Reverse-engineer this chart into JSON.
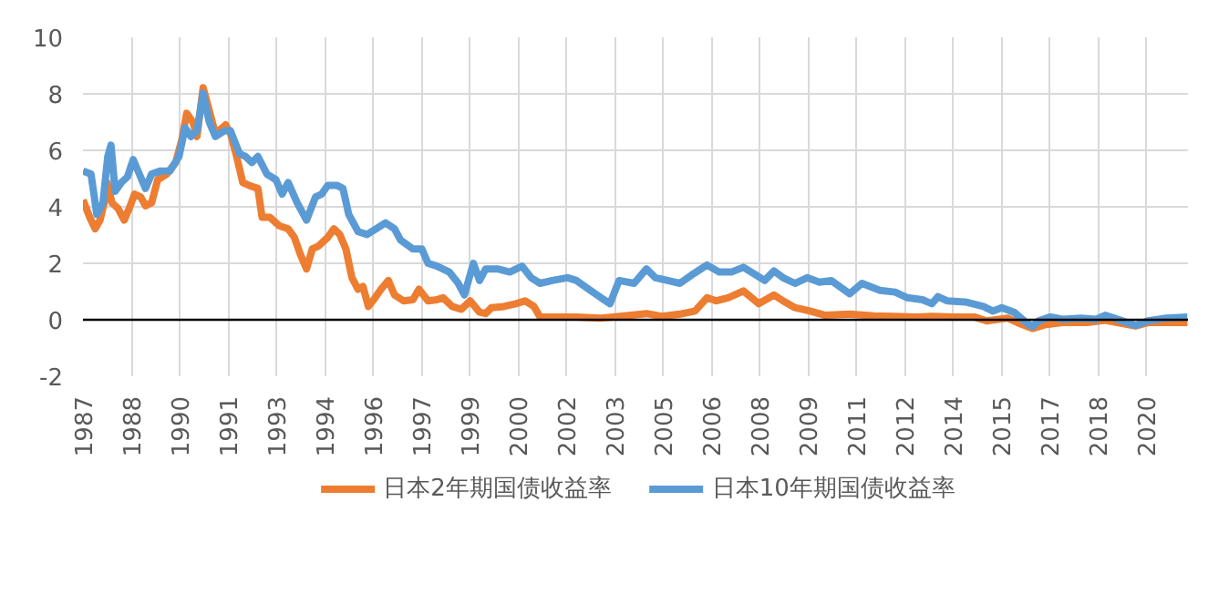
{
  "chart_data": {
    "type": "line",
    "series": [
      {
        "name": "日本2年期国债收益率",
        "color": "#ed7d31",
        "x": [
          1987.0,
          1987.21,
          1987.38,
          1987.53,
          1987.66,
          1987.75,
          1987.9,
          1988.09,
          1988.28,
          1988.47,
          1988.6,
          1988.79,
          1988.94,
          1989.13,
          1989.32,
          1989.6,
          1989.88,
          1990.07,
          1990.22,
          1990.41,
          1990.54,
          1990.73,
          1990.92,
          1991.11,
          1991.43,
          1991.58,
          1991.77,
          1991.96,
          1992.15,
          1992.43,
          1992.56,
          1992.8,
          1993.09,
          1993.37,
          1993.56,
          1993.75,
          1993.94,
          1994.12,
          1994.31,
          1994.6,
          1994.79,
          1994.97,
          1995.16,
          1995.35,
          1995.54,
          1995.69,
          1995.86,
          1996.07,
          1996.25,
          1996.48,
          1996.67,
          1996.95,
          1997.24,
          1997.43,
          1997.71,
          1997.99,
          1998.18,
          1998.46,
          1998.74,
          1999.02,
          1999.31,
          1999.5,
          1999.68,
          2000.06,
          2000.44,
          2000.72,
          2001.0,
          2001.19,
          2001.57,
          2002.32,
          2003.08,
          2003.45,
          2004.02,
          2004.49,
          2004.96,
          2005.53,
          2006.0,
          2006.37,
          2006.66,
          2007.03,
          2007.5,
          2007.98,
          2008.45,
          2008.73,
          2009.1,
          2009.57,
          2010.04,
          2010.8,
          2011.55,
          2012.11,
          2012.87,
          2013.35,
          2014.01,
          2014.67,
          2015.05,
          2015.71,
          2016.09,
          2016.47,
          2016.84,
          2017.41,
          2018.17,
          2018.73,
          2019.3,
          2019.67,
          2020.05,
          2021.28
        ],
        "values": [
          4.24,
          3.63,
          3.22,
          3.53,
          4.14,
          4.86,
          4.14,
          3.94,
          3.53,
          4.04,
          4.45,
          4.35,
          4.04,
          4.14,
          4.96,
          5.16,
          5.57,
          6.39,
          7.31,
          7.0,
          6.49,
          8.22,
          7.41,
          6.59,
          6.9,
          6.59,
          5.78,
          4.86,
          4.76,
          4.65,
          3.63,
          3.63,
          3.33,
          3.22,
          2.92,
          2.31,
          1.8,
          2.51,
          2.61,
          2.92,
          3.22,
          3.02,
          2.51,
          1.49,
          1.08,
          1.18,
          0.47,
          0.78,
          1.08,
          1.39,
          0.88,
          0.67,
          0.71,
          1.08,
          0.67,
          0.71,
          0.78,
          0.47,
          0.37,
          0.67,
          0.27,
          0.22,
          0.43,
          0.47,
          0.57,
          0.67,
          0.47,
          0.1,
          0.1,
          0.1,
          0.06,
          0.1,
          0.16,
          0.22,
          0.12,
          0.2,
          0.31,
          0.78,
          0.67,
          0.78,
          1.02,
          0.57,
          0.88,
          0.67,
          0.43,
          0.31,
          0.16,
          0.2,
          0.14,
          0.12,
          0.1,
          0.12,
          0.1,
          0.1,
          -0.04,
          0.06,
          -0.14,
          -0.31,
          -0.18,
          -0.1,
          -0.1,
          -0.02,
          -0.14,
          -0.22,
          -0.1,
          -0.1
        ]
      },
      {
        "name": "日本10年期国债收益率",
        "color": "#5b9bd5",
        "x": [
          1987.0,
          1987.25,
          1987.43,
          1987.62,
          1987.77,
          1987.87,
          1988.0,
          1988.19,
          1988.38,
          1988.56,
          1988.75,
          1988.94,
          1989.13,
          1989.41,
          1989.7,
          1989.98,
          1990.17,
          1990.35,
          1990.54,
          1990.73,
          1990.92,
          1991.11,
          1991.39,
          1991.58,
          1991.86,
          1992.05,
          1992.24,
          1992.43,
          1992.71,
          1992.99,
          1993.18,
          1993.37,
          1993.65,
          1993.94,
          1994.22,
          1994.41,
          1994.6,
          1994.88,
          1995.07,
          1995.25,
          1995.54,
          1995.82,
          1996.1,
          1996.39,
          1996.67,
          1996.86,
          1997.24,
          1997.52,
          1997.71,
          1997.99,
          1998.37,
          1998.65,
          1998.84,
          1999.12,
          1999.31,
          1999.5,
          1999.87,
          2000.25,
          2000.63,
          2000.91,
          2001.19,
          2001.57,
          2002.04,
          2002.32,
          2002.7,
          2003.08,
          2003.36,
          2003.64,
          2004.11,
          2004.49,
          2004.77,
          2005.15,
          2005.53,
          2005.9,
          2006.37,
          2006.75,
          2007.13,
          2007.5,
          2007.88,
          2008.16,
          2008.45,
          2008.73,
          2009.1,
          2009.48,
          2009.86,
          2010.23,
          2010.8,
          2011.18,
          2011.74,
          2012.21,
          2012.59,
          2013.06,
          2013.35,
          2013.54,
          2013.82,
          2014.39,
          2014.95,
          2015.24,
          2015.52,
          2015.9,
          2016.28,
          2016.47,
          2016.66,
          2017.03,
          2017.41,
          2017.98,
          2018.45,
          2018.73,
          2019.11,
          2019.67,
          2020.05,
          2020.62,
          2021.28
        ],
        "values": [
          5.27,
          5.16,
          3.73,
          4.14,
          5.78,
          6.18,
          4.55,
          4.86,
          5.06,
          5.67,
          5.16,
          4.65,
          5.16,
          5.27,
          5.27,
          5.78,
          6.8,
          6.49,
          6.69,
          8.02,
          7.0,
          6.49,
          6.69,
          6.69,
          5.88,
          5.78,
          5.57,
          5.78,
          5.16,
          4.96,
          4.45,
          4.86,
          4.14,
          3.53,
          4.35,
          4.45,
          4.76,
          4.76,
          4.65,
          3.73,
          3.12,
          3.02,
          3.22,
          3.43,
          3.22,
          2.82,
          2.51,
          2.51,
          2.0,
          1.9,
          1.69,
          1.29,
          0.88,
          2.0,
          1.39,
          1.8,
          1.8,
          1.69,
          1.9,
          1.49,
          1.29,
          1.39,
          1.49,
          1.39,
          1.08,
          0.78,
          0.57,
          1.39,
          1.29,
          1.8,
          1.49,
          1.39,
          1.29,
          1.59,
          1.94,
          1.69,
          1.69,
          1.86,
          1.59,
          1.39,
          1.73,
          1.49,
          1.29,
          1.49,
          1.33,
          1.39,
          0.92,
          1.29,
          1.04,
          0.98,
          0.78,
          0.71,
          0.57,
          0.82,
          0.67,
          0.63,
          0.47,
          0.31,
          0.43,
          0.27,
          -0.1,
          -0.24,
          -0.04,
          0.1,
          0.02,
          0.06,
          0.02,
          0.16,
          0.02,
          -0.2,
          -0.04,
          0.06,
          0.1
        ]
      }
    ],
    "xlim": [
      1987,
      2021.3
    ],
    "xticks": [
      1987,
      {
        "value": 1988.5,
        "label": "1988"
      },
      1990,
      {
        "value": 1991.5,
        "label": "1991"
      },
      1993,
      {
        "value": 1994.5,
        "label": "1994"
      },
      1996,
      {
        "value": 1997.5,
        "label": "1997"
      },
      1999,
      {
        "value": 2000.5,
        "label": "2000"
      },
      2002,
      {
        "value": 2003.5,
        "label": "2003"
      },
      2005,
      {
        "value": 2006.5,
        "label": "2006"
      },
      2008,
      {
        "value": 2009.5,
        "label": "2009"
      },
      2011,
      {
        "value": 2012.5,
        "label": "2012"
      },
      2014,
      {
        "value": 2015.5,
        "label": "2015"
      },
      2017,
      {
        "value": 2018.5,
        "label": "2018"
      },
      2020
    ],
    "ylim": [
      -2,
      10
    ],
    "yticks": [
      -2,
      0,
      2,
      4,
      6,
      8,
      10
    ],
    "ref_lines": [
      {
        "axis": "y",
        "value": 0,
        "color": "#000000"
      }
    ],
    "grid": true,
    "legend": "bottom"
  }
}
